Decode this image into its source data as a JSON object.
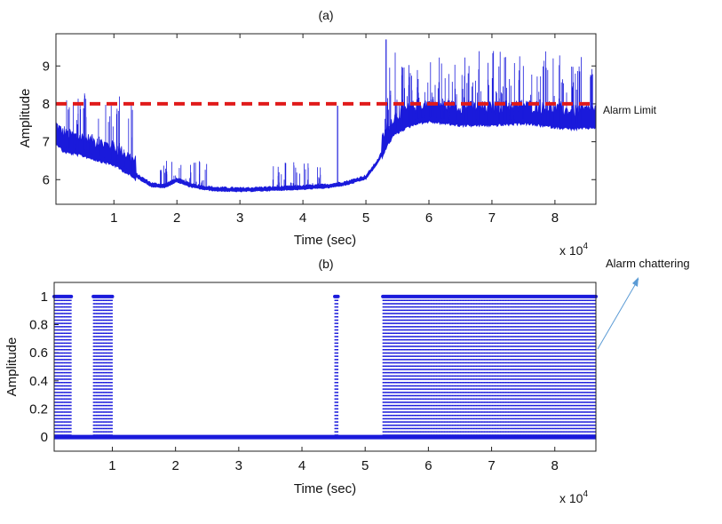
{
  "chart_data": [
    {
      "type": "line",
      "panel_label": "(a)",
      "title": "(a)",
      "xlabel": "Time (sec)",
      "ylabel": "Amplitude",
      "x_multiplier": "x 10",
      "x_multiplier_exp": "4",
      "xlim": [
        0.08,
        8.65
      ],
      "ylim": [
        5.35,
        9.85
      ],
      "xticks": [
        1,
        2,
        3,
        4,
        5,
        6,
        7,
        8
      ],
      "yticks": [
        6,
        7,
        8,
        9
      ],
      "color": "#1a1adb",
      "threshold": {
        "value": 8,
        "label": "Alarm Limit",
        "color": "#e01a1a",
        "style": "dashed"
      },
      "baseline_series": {
        "name": "Amplitude",
        "x": [
          0.08,
          0.2,
          0.5,
          0.8,
          1.0,
          1.2,
          1.4,
          1.6,
          1.8,
          2.0,
          2.2,
          2.4,
          2.6,
          3.0,
          3.5,
          4.0,
          4.4,
          4.7,
          5.0,
          5.2,
          5.35,
          5.45,
          5.6,
          5.8,
          6.0,
          6.5,
          7.0,
          7.5,
          8.0,
          8.3,
          8.65
        ],
        "y": [
          7.1,
          6.85,
          6.75,
          6.6,
          6.5,
          6.3,
          6.05,
          5.85,
          5.82,
          5.98,
          5.85,
          5.78,
          5.74,
          5.72,
          5.75,
          5.78,
          5.82,
          5.9,
          6.05,
          6.5,
          7.05,
          7.3,
          7.45,
          7.6,
          7.65,
          7.55,
          7.55,
          7.6,
          7.5,
          7.45,
          7.5
        ]
      },
      "spike_clusters": [
        {
          "range": [
            0.08,
            1.3
          ],
          "max": 8.5
        },
        {
          "range": [
            1.7,
            2.5
          ],
          "max": 6.5
        },
        {
          "range": [
            3.5,
            4.3
          ],
          "max": 6.5
        },
        {
          "range": [
            5.3,
            8.65
          ],
          "max": 9.4
        }
      ],
      "isolated_spikes": [
        {
          "x": 4.55,
          "y": 7.95
        },
        {
          "x": 5.32,
          "y": 9.7
        }
      ]
    },
    {
      "type": "stem",
      "panel_label": "(b)",
      "title": "(b)",
      "xlabel": "Time (sec)",
      "ylabel": "Amplitude",
      "x_multiplier": "x 10",
      "x_multiplier_exp": "4",
      "xlim": [
        0.08,
        8.65
      ],
      "ylim": [
        -0.1,
        1.1
      ],
      "xticks": [
        1,
        2,
        3,
        4,
        5,
        6,
        7,
        8
      ],
      "yticks": [
        0,
        0.2,
        0.4,
        0.6,
        0.8,
        1
      ],
      "ytick_labels": [
        "0",
        "0.2",
        "0.4",
        "0.6",
        "0.8",
        "1"
      ],
      "color": "#1a1adb",
      "alarm_value": 1,
      "normal_value": 0,
      "alarm_intervals": [
        [
          0.08,
          0.35
        ],
        [
          0.7,
          1.0
        ],
        [
          4.52,
          4.57
        ],
        [
          5.28,
          8.65
        ]
      ],
      "annotation": {
        "text": "Alarm chattering",
        "arrow_color": "#5b9bd5"
      }
    }
  ]
}
